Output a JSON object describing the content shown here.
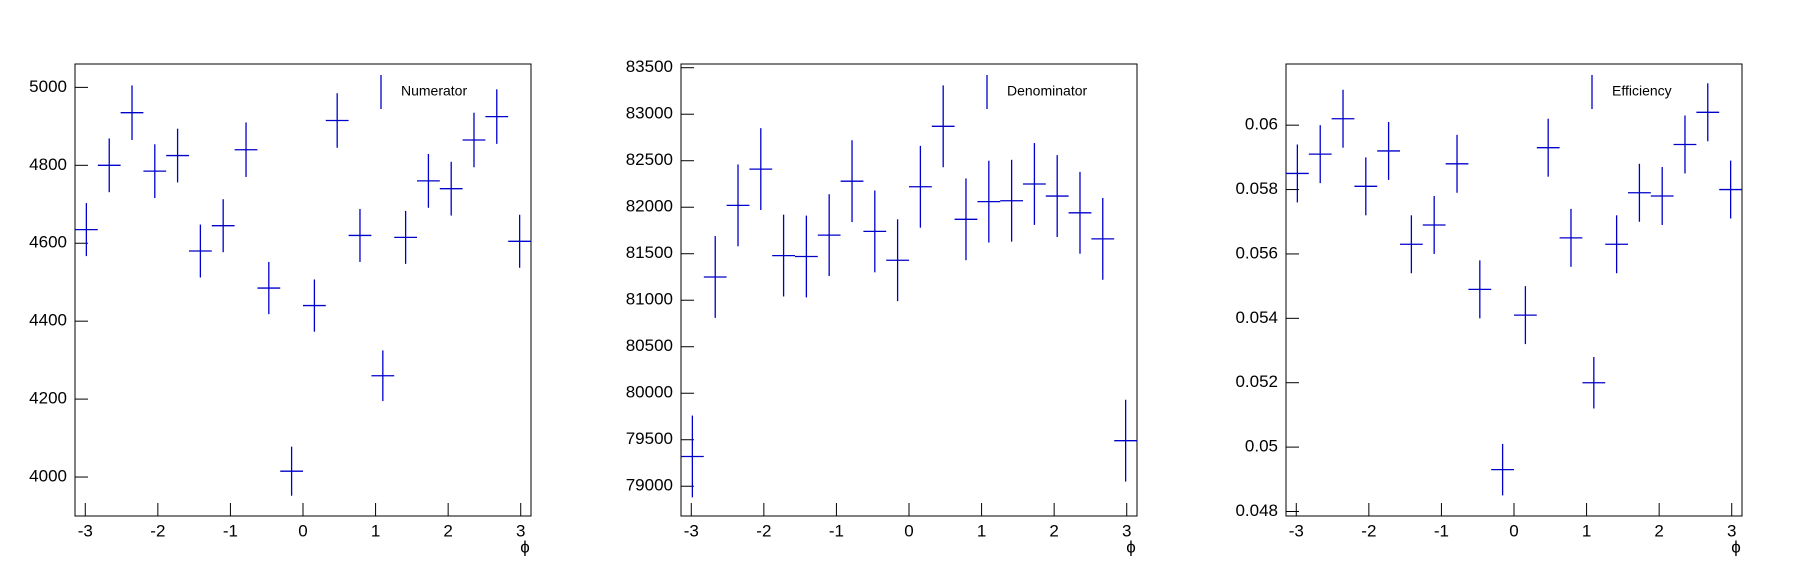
{
  "chart_data": [
    {
      "type": "errorbar",
      "xlabel": "ϕ",
      "x": [
        -2.985,
        -2.67,
        -2.356,
        -2.042,
        -1.728,
        -1.414,
        -1.1,
        -0.785,
        -0.471,
        -0.157,
        0.157,
        0.471,
        0.785,
        1.1,
        1.414,
        1.728,
        2.042,
        2.356,
        2.67,
        2.985
      ],
      "xerr": 0.157,
      "series": [
        {
          "name": "Numerator",
          "color": "#0000cc",
          "values": [
            4635,
            4800,
            4935,
            4785,
            4825,
            4580,
            4645,
            4840,
            4485,
            4015,
            4440,
            4915,
            4620,
            4260,
            4615,
            4760,
            4740,
            4865,
            4925,
            4605
          ],
          "errors": [
            68,
            69,
            70,
            69,
            69,
            68,
            68,
            70,
            67,
            63,
            67,
            70,
            68,
            65,
            68,
            69,
            69,
            70,
            70,
            68
          ]
        }
      ],
      "xlim": [
        -3.1416,
        3.1416
      ],
      "xticks": [
        -3,
        -2,
        -1,
        0,
        1,
        2,
        3
      ],
      "ylim": [
        3900,
        5060
      ],
      "yticks": [
        4000,
        4200,
        4400,
        4600,
        4800,
        5000
      ],
      "legend": "upper right"
    },
    {
      "type": "errorbar",
      "xlabel": "ϕ",
      "x": [
        -2.985,
        -2.67,
        -2.356,
        -2.042,
        -1.728,
        -1.414,
        -1.1,
        -0.785,
        -0.471,
        -0.157,
        0.157,
        0.471,
        0.785,
        1.1,
        1.414,
        1.728,
        2.042,
        2.356,
        2.67,
        2.985
      ],
      "xerr": 0.157,
      "series": [
        {
          "name": "Denominator",
          "color": "#0000cc",
          "values": [
            79320,
            81250,
            82020,
            82410,
            81480,
            81470,
            81700,
            82280,
            81740,
            81430,
            82220,
            82870,
            81870,
            82060,
            82070,
            82250,
            82120,
            81940,
            81660,
            79490
          ],
          "errors": [
            440,
            440,
            440,
            440,
            440,
            440,
            440,
            440,
            440,
            440,
            440,
            440,
            440,
            440,
            440,
            440,
            440,
            440,
            440,
            440
          ]
        }
      ],
      "xlim": [
        -3.1416,
        3.1416
      ],
      "xticks": [
        -3,
        -2,
        -1,
        0,
        1,
        2,
        3
      ],
      "ylim": [
        78680,
        83540
      ],
      "yticks": [
        79000,
        79500,
        80000,
        80500,
        81000,
        81500,
        82000,
        82500,
        83000,
        83500
      ],
      "legend": "upper right"
    },
    {
      "type": "errorbar",
      "xlabel": "ϕ",
      "x": [
        -2.985,
        -2.67,
        -2.356,
        -2.042,
        -1.728,
        -1.414,
        -1.1,
        -0.785,
        -0.471,
        -0.157,
        0.157,
        0.471,
        0.785,
        1.1,
        1.414,
        1.728,
        2.042,
        2.356,
        2.67,
        2.985
      ],
      "xerr": 0.157,
      "series": [
        {
          "name": "Efficiency",
          "color": "#0000cc",
          "values": [
            0.0585,
            0.0591,
            0.0602,
            0.0581,
            0.0592,
            0.0563,
            0.0569,
            0.0588,
            0.0549,
            0.0493,
            0.0541,
            0.0593,
            0.0565,
            0.052,
            0.0563,
            0.0579,
            0.0578,
            0.0594,
            0.0604,
            0.058
          ],
          "errors": [
            0.0009,
            0.0009,
            0.0009,
            0.0009,
            0.0009,
            0.0009,
            0.0009,
            0.0009,
            0.0009,
            0.0008,
            0.0009,
            0.0009,
            0.0009,
            0.0008,
            0.0009,
            0.0009,
            0.0009,
            0.0009,
            0.0009,
            0.0009
          ]
        }
      ],
      "xlim": [
        -3.1416,
        3.1416
      ],
      "xticks": [
        -3,
        -2,
        -1,
        0,
        1,
        2,
        3
      ],
      "ylim": [
        0.04786,
        0.0619
      ],
      "yticks": [
        0.048,
        0.05,
        0.052,
        0.054,
        0.056,
        0.058,
        0.06
      ],
      "legend": "upper right"
    }
  ]
}
